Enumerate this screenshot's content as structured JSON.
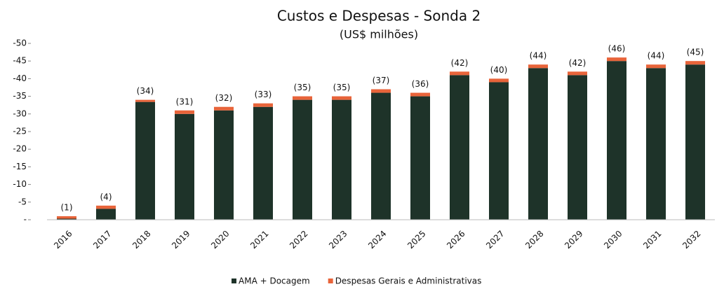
{
  "chart_data": {
    "type": "stacked_bar",
    "title": "Custos e Despesas - Sonda 2",
    "subtitle": "(US$ milhões)",
    "categories": [
      "2016",
      "2017",
      "2018",
      "2019",
      "2020",
      "2021",
      "2022",
      "2023",
      "2024",
      "2025",
      "2026",
      "2027",
      "2028",
      "2029",
      "2030",
      "2031",
      "2032"
    ],
    "series": [
      {
        "name": "AMA + Docagem",
        "color": "#1e3329",
        "values": [
          -0.3,
          -3.1,
          -33.4,
          -30,
          -31,
          -32,
          -34,
          -34,
          -36,
          -35,
          -41,
          -39,
          -43,
          -41,
          -45,
          -43,
          -44
        ]
      },
      {
        "name": "Despesas Gerais e Administrativas",
        "color": "#e8643a",
        "values": [
          -0.7,
          -0.9,
          -0.6,
          -1,
          -1,
          -1,
          -1,
          -1,
          -1,
          -1,
          -1,
          -1,
          -1,
          -1,
          -1,
          -1,
          -1
        ]
      }
    ],
    "totals": [
      -1,
      -4,
      -34,
      -31,
      -32,
      -33,
      -35,
      -35,
      -37,
      -36,
      -42,
      -40,
      -44,
      -42,
      -46,
      -44,
      -45
    ],
    "total_labels": [
      "(1)",
      "(4)",
      "(34)",
      "(31)",
      "(32)",
      "(33)",
      "(35)",
      "(35)",
      "(37)",
      "(36)",
      "(42)",
      "(40)",
      "(44)",
      "(42)",
      "(46)",
      "(44)",
      "(45)"
    ],
    "ylim": [
      0,
      -50
    ],
    "yticks": [
      {
        "value": 0,
        "label": "-"
      },
      -5,
      -10,
      -15,
      -20,
      -25,
      -30,
      -35,
      -40,
      -45,
      -50
    ],
    "grid": false,
    "legend": "bottom"
  }
}
